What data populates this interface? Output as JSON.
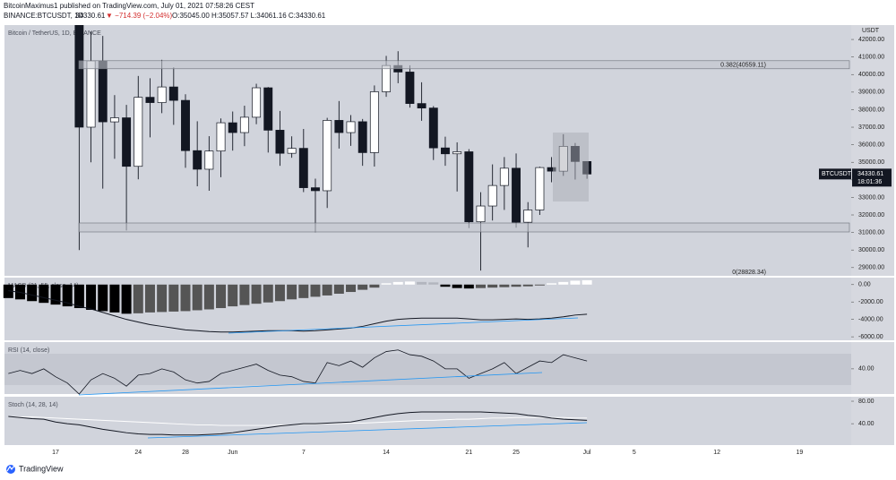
{
  "header": {
    "author_line": "BitcoinMaximus1 published on TradingView.com, July 01, 2021 07:58:26 CEST",
    "symbol": "BINANCE:BTCUSDT, 1D",
    "last": "34330.61",
    "change": "▼ −714.39 (−2.04%)",
    "ohlc": "O:35045.00 H:35057.57 L:34061.16 C:34330.61"
  },
  "footer": {
    "brand": "TradingView"
  },
  "chart_data": [
    {
      "type": "candlestick",
      "title": "Bitcoin / TetherUS, 1D, BINANCE",
      "y_axis_label": "USDT",
      "categories": [
        null,
        null,
        null,
        null,
        "17",
        null,
        null,
        null,
        null,
        null,
        null,
        "24",
        null,
        null,
        null,
        "28",
        null,
        null,
        null,
        "Jun",
        null,
        null,
        null,
        null,
        null,
        "7",
        null,
        null,
        null,
        null,
        null,
        null,
        "14",
        null,
        null,
        null,
        null,
        null,
        null,
        "21",
        null,
        null,
        null,
        "25",
        null,
        null,
        null,
        null,
        null,
        "Jul",
        null,
        null,
        null,
        "5",
        null,
        null,
        null,
        null,
        null,
        null,
        "12",
        null,
        null,
        null,
        null,
        null,
        null,
        "19",
        null,
        null,
        null,
        null
      ],
      "open": [
        null,
        null,
        null,
        null,
        null,
        null,
        42876,
        37002,
        40782,
        37304,
        37536,
        34770,
        38705,
        38402,
        39294,
        38529,
        35664,
        34605,
        35641,
        37253,
        36694,
        37568,
        39246,
        36829,
        35513,
        35796,
        33552,
        33380,
        37389,
        36693,
        37313,
        35551,
        39020,
        40516,
        40144,
        38349,
        38092,
        35820,
        35483,
        35600,
        31608,
        32509,
        33678,
        34663,
        31584,
        32283,
        34700,
        34494,
        35911,
        35045,
        null,
        null,
        null,
        null,
        null,
        null,
        null,
        null,
        null,
        null,
        null,
        null,
        null,
        null,
        null,
        null,
        null,
        null,
        null,
        null,
        null,
        null
      ],
      "high": [
        null,
        null,
        null,
        null,
        null,
        null,
        43546,
        42451,
        42200,
        38829,
        38270,
        39920,
        39791,
        40841,
        40411,
        38877,
        37338,
        36488,
        37499,
        37894,
        38225,
        39476,
        39289,
        37925,
        36480,
        36900,
        34069,
        37534,
        38491,
        37689,
        37469,
        39380,
        41064,
        41330,
        40527,
        39560,
        38202,
        36457,
        36137,
        35750,
        33298,
        34881,
        35298,
        35500,
        32730,
        34749,
        35297,
        36600,
        36100,
        35057.57,
        null,
        null,
        null,
        null,
        null,
        null,
        null,
        null,
        null,
        null,
        null,
        null,
        null,
        null,
        null,
        null,
        null,
        null,
        null,
        null,
        null,
        null
      ],
      "low": [
        null,
        null,
        null,
        null,
        null,
        null,
        30000,
        35000,
        33500,
        35200,
        31111,
        34031,
        36419,
        37800,
        37134,
        34684,
        33632,
        33379,
        34153,
        35666,
        35920,
        37170,
        35555,
        34800,
        35258,
        33300,
        31004,
        32396,
        35782,
        35936,
        34800,
        34757,
        38730,
        39506,
        38116,
        37365,
        35129,
        34803,
        33336,
        31251,
        28828,
        31683,
        32286,
        31275,
        30151,
        32000,
        33862,
        34225,
        34017,
        34061.16,
        null,
        null,
        null,
        null,
        null,
        null,
        null,
        null,
        null,
        null,
        null,
        null,
        null,
        null,
        null,
        null,
        null,
        null,
        null,
        null,
        null,
        null
      ],
      "close": [
        null,
        null,
        null,
        null,
        null,
        null,
        37002,
        40782,
        37304,
        37536,
        34770,
        38705,
        38402,
        39294,
        38529,
        35664,
        34605,
        35641,
        37253,
        36694,
        37568,
        39246,
        36829,
        35513,
        35796,
        33552,
        33380,
        37389,
        36693,
        37313,
        35551,
        39020,
        40516,
        40144,
        38349,
        38092,
        35820,
        35483,
        35600,
        31608,
        32509,
        33678,
        34663,
        31584,
        32283,
        34700,
        34494,
        35911,
        35045,
        34330.61,
        null,
        null,
        null,
        null,
        null,
        null,
        null,
        null,
        null,
        null,
        null,
        null,
        null,
        null,
        null,
        null,
        null,
        null,
        null,
        null,
        null,
        null
      ],
      "up_color": "#ffffff",
      "down_color": "#131722",
      "ylim": [
        28530,
        42820
      ],
      "yticks": [
        {
          "value": 29000,
          "label": "29000.00"
        },
        {
          "value": 30000,
          "label": "30000.00"
        },
        {
          "value": 31000,
          "label": "31000.00"
        },
        {
          "value": 32000,
          "label": "32000.00"
        },
        {
          "value": 33000,
          "label": "33000.00"
        },
        {
          "value": 34000,
          "label": "34000.00"
        },
        {
          "value": 35000,
          "label": "35000.00"
        },
        {
          "value": 36000,
          "label": "36000.00"
        },
        {
          "value": 37000,
          "label": "37000.00"
        },
        {
          "value": 38000,
          "label": "38000.00"
        },
        {
          "value": 39000,
          "label": "39000.00"
        },
        {
          "value": 40000,
          "label": "40000.00"
        },
        {
          "value": 41000,
          "label": "41000.00"
        },
        {
          "value": 42000,
          "label": "42000.00"
        }
      ],
      "annotations": [
        {
          "text": "0.382(40559.11)",
          "value": 40559.11,
          "boxed": true
        },
        {
          "text": "0(28828.34)",
          "value": 28828.34,
          "boxed": false
        }
      ],
      "last_price": {
        "symbol": "BTCUSDT",
        "value": 34330.61,
        "countdown": "18:01:36"
      }
    },
    {
      "type": "macd",
      "title": "MACD (21, 55, close, 14)",
      "histogram": [
        -1550,
        -1700,
        -1900,
        -2100,
        -2300,
        -2500,
        -2700,
        -2900,
        -3050,
        -3200,
        -3350,
        -3300,
        -3200,
        -3150,
        -3100,
        -3050,
        -2950,
        -2850,
        -2700,
        -2500,
        -2350,
        -2200,
        -2050,
        -1900,
        -1700,
        -1550,
        -1400,
        -1250,
        -1050,
        -850,
        -600,
        -350,
        150,
        300,
        350,
        300,
        250,
        -250,
        -400,
        -450,
        -400,
        -350,
        -300,
        -250,
        -200,
        -100,
        150,
        300,
        450,
        500,
        null,
        null,
        null,
        null,
        null,
        null,
        null,
        null,
        null,
        null,
        null,
        null,
        null,
        null,
        null,
        null,
        null,
        null,
        null,
        null,
        null,
        null
      ],
      "macd": [
        -700,
        -900,
        -1200,
        -1500,
        -1800,
        -2100,
        -2500,
        -2800,
        -3200,
        -3600,
        -4000,
        -4300,
        -4600,
        -4800,
        -5000,
        -5200,
        -5300,
        -5400,
        -5450,
        -5450,
        -5400,
        -5350,
        -5300,
        -5300,
        -5300,
        -5350,
        -5300,
        -5200,
        -5100,
        -5000,
        -4800,
        -4500,
        -4200,
        -4000,
        -3900,
        -3850,
        -3850,
        -3850,
        -3850,
        -3950,
        -4050,
        -4050,
        -4000,
        -3950,
        -4000,
        -3950,
        -3850,
        -3700,
        -3500,
        -3400,
        null,
        null,
        null,
        null,
        null,
        null,
        null,
        null,
        null,
        null,
        null,
        null,
        null,
        null,
        null,
        null,
        null,
        null,
        null,
        null,
        null,
        null
      ],
      "histogram_colors": [
        "#000000",
        "#555555",
        "#ffffff",
        "#b2b5be"
      ],
      "line_color": "#131722",
      "ylim": [
        -6400,
        800
      ],
      "yticks": [
        {
          "value": 0,
          "label": "0.00"
        },
        {
          "value": -2000,
          "label": "-2000.00"
        },
        {
          "value": -4000,
          "label": "-4000.00"
        },
        {
          "value": -6000,
          "label": "-6000.00"
        }
      ]
    },
    {
      "type": "line",
      "title": "RSI (14, close)",
      "values": [
        37,
        39,
        37,
        40,
        35,
        31,
        24,
        33,
        37,
        34,
        29,
        36,
        37,
        40,
        38,
        33,
        31,
        32,
        37,
        39,
        41,
        43,
        39,
        36,
        35,
        32,
        31,
        44,
        42,
        45,
        41,
        47,
        51,
        52,
        49,
        48,
        45,
        40,
        40,
        34,
        37,
        40,
        44,
        37,
        41,
        45,
        44,
        49,
        47,
        45,
        null,
        null,
        null,
        null,
        null,
        null,
        null,
        null,
        null,
        null,
        null,
        null,
        null,
        null,
        null,
        null,
        null,
        null,
        null,
        null,
        null,
        null
      ],
      "color": "#131722",
      "ylim": [
        24,
        57
      ],
      "yticks": [
        {
          "value": 40,
          "label": "40.00"
        }
      ]
    },
    {
      "type": "stoch",
      "title": "Stoch (14, 28, 14)",
      "k": [
        53,
        51,
        49,
        48,
        43,
        40,
        38,
        34,
        30,
        27,
        24,
        22,
        21,
        21,
        20,
        20,
        20,
        21,
        22,
        24,
        27,
        30,
        33,
        36,
        38,
        40,
        40,
        41,
        42,
        43,
        47,
        51,
        55,
        58,
        60,
        61,
        61,
        61,
        61,
        61,
        61,
        60,
        59,
        58,
        55,
        53,
        50,
        48,
        47,
        46,
        null,
        null,
        null,
        null,
        null,
        null,
        null,
        null,
        null,
        null,
        null,
        null,
        null,
        null,
        null,
        null,
        null,
        null,
        null,
        null,
        null,
        null
      ],
      "d": [
        53,
        52,
        52,
        51,
        50,
        49,
        48,
        47,
        46,
        45,
        44,
        43,
        42,
        41,
        40,
        39,
        38,
        38,
        37,
        37,
        37,
        37,
        37,
        38,
        38,
        39,
        39,
        40,
        40,
        41,
        41,
        42,
        43,
        44,
        45,
        46,
        46,
        47,
        48,
        48,
        49,
        50,
        50,
        51,
        51,
        51,
        51,
        51,
        50,
        50,
        null,
        null,
        null,
        null,
        null,
        null,
        null,
        null,
        null,
        null,
        null,
        null,
        null,
        null,
        null,
        null,
        null,
        null,
        null,
        null,
        null,
        null
      ],
      "k_color": "#131722",
      "d_color": "#ffffff",
      "ylim": [
        2,
        88
      ],
      "yticks": [
        {
          "value": 40,
          "label": "40.00"
        },
        {
          "value": 80,
          "label": "80.00"
        }
      ]
    }
  ]
}
